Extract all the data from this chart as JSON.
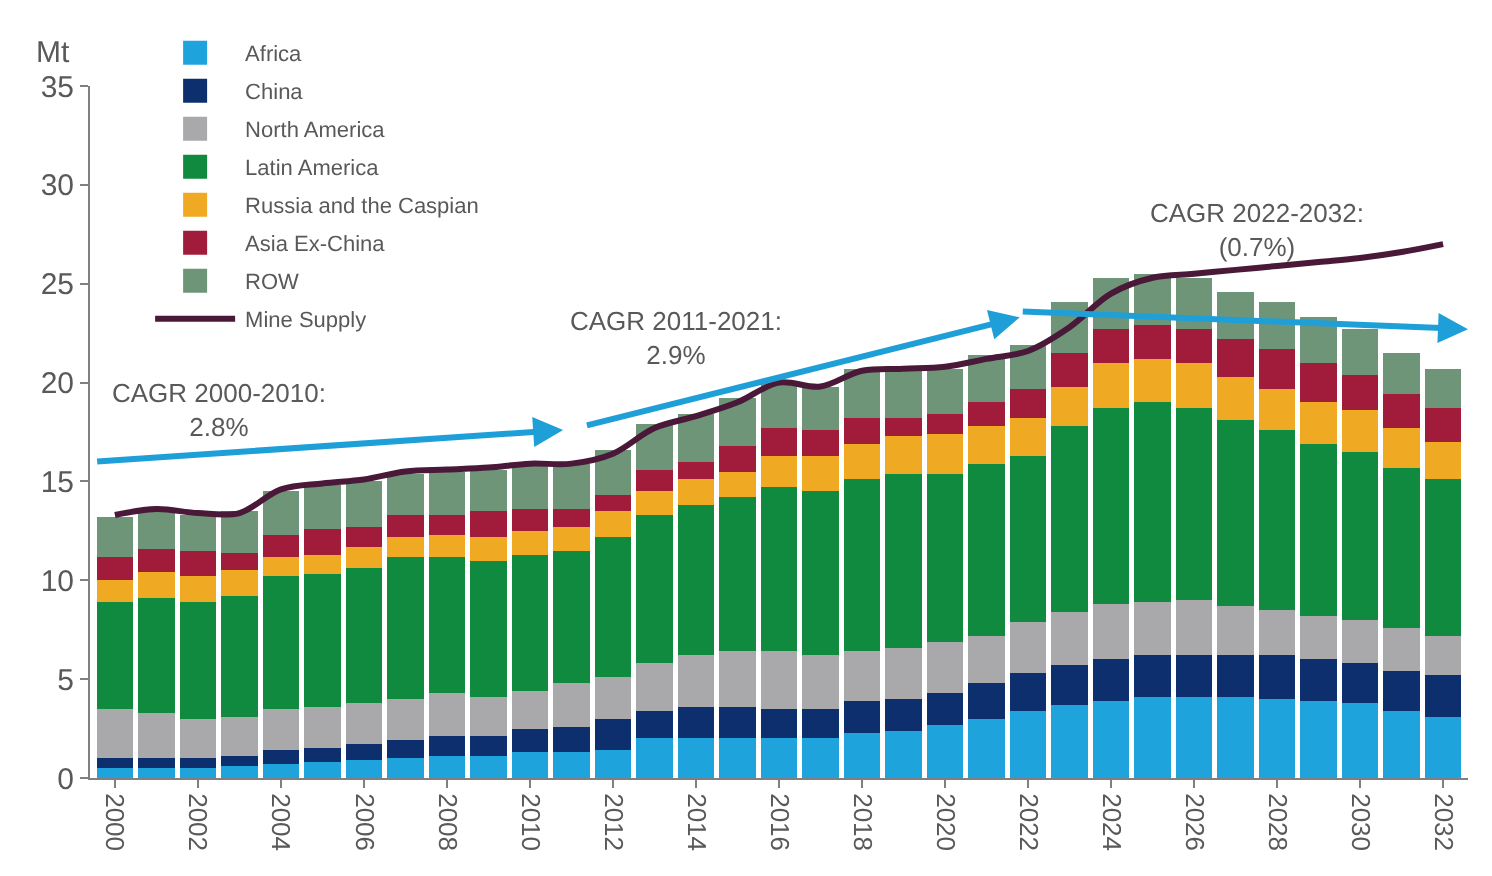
{
  "chart_data": {
    "type": "bar",
    "stacked": true,
    "ylabel": "Mt",
    "categories": [
      "2000",
      null,
      "2002",
      null,
      "2004",
      null,
      "2006",
      null,
      "2008",
      null,
      "2010",
      null,
      "2012",
      null,
      "2014",
      null,
      "2016",
      null,
      "2018",
      null,
      "2020",
      null,
      "2022",
      null,
      "2024",
      null,
      "2026",
      null,
      "2028",
      null,
      "2030",
      null,
      "2032"
    ],
    "ylim": [
      0,
      35
    ],
    "yticks": [
      0,
      5,
      10,
      15,
      20,
      25,
      30,
      35
    ],
    "legend": "top left",
    "series": [
      {
        "name": "Africa",
        "color": "#1fa3dc",
        "values": [
          0.5,
          0.5,
          0.5,
          0.6,
          0.7,
          0.8,
          0.9,
          1.0,
          1.1,
          1.1,
          1.3,
          1.3,
          1.4,
          2.0,
          2.0,
          2.0,
          2.0,
          2.0,
          2.3,
          2.4,
          2.7,
          3.0,
          3.4,
          3.7,
          3.9,
          4.1,
          4.1,
          4.1,
          4.0,
          3.9,
          3.8,
          3.4,
          3.1
        ]
      },
      {
        "name": "China",
        "color": "#0d2f6e",
        "values": [
          0.5,
          0.5,
          0.5,
          0.5,
          0.7,
          0.7,
          0.8,
          0.9,
          1.0,
          1.0,
          1.2,
          1.3,
          1.6,
          1.4,
          1.6,
          1.6,
          1.5,
          1.5,
          1.6,
          1.6,
          1.6,
          1.8,
          1.9,
          2.0,
          2.1,
          2.1,
          2.1,
          2.1,
          2.2,
          2.1,
          2.0,
          2.0,
          2.1
        ]
      },
      {
        "name": "North America",
        "color": "#a9a9ab",
        "values": [
          2.5,
          2.3,
          2.0,
          2.0,
          2.1,
          2.1,
          2.1,
          2.1,
          2.2,
          2.0,
          1.9,
          2.2,
          2.1,
          2.4,
          2.6,
          2.8,
          2.9,
          2.7,
          2.5,
          2.6,
          2.6,
          2.4,
          2.6,
          2.7,
          2.8,
          2.7,
          2.8,
          2.5,
          2.3,
          2.2,
          2.2,
          2.2,
          2.0
        ]
      },
      {
        "name": "Latin America",
        "color": "#108a3e",
        "values": [
          5.4,
          5.8,
          5.9,
          6.1,
          6.7,
          6.7,
          6.8,
          7.2,
          6.9,
          6.9,
          6.9,
          6.7,
          7.1,
          7.5,
          7.6,
          7.8,
          8.3,
          8.3,
          8.7,
          8.8,
          8.5,
          8.7,
          8.4,
          9.4,
          9.9,
          10.1,
          9.7,
          9.4,
          9.1,
          8.7,
          8.5,
          8.1,
          7.9
        ]
      },
      {
        "name": "Russia and the Caspian",
        "color": "#f0a922",
        "values": [
          1.1,
          1.3,
          1.3,
          1.3,
          1.0,
          1.0,
          1.1,
          1.0,
          1.1,
          1.2,
          1.2,
          1.2,
          1.3,
          1.2,
          1.3,
          1.3,
          1.6,
          1.8,
          1.8,
          1.9,
          2.0,
          1.9,
          1.9,
          2.0,
          2.3,
          2.2,
          2.3,
          2.2,
          2.1,
          2.1,
          2.1,
          2.0,
          1.9
        ]
      },
      {
        "name": "Asia Ex-China",
        "color": "#a01c3a",
        "values": [
          1.2,
          1.2,
          1.3,
          0.9,
          1.1,
          1.3,
          1.0,
          1.1,
          1.0,
          1.3,
          1.1,
          0.9,
          0.8,
          1.1,
          0.9,
          1.3,
          1.4,
          1.3,
          1.3,
          0.9,
          1.0,
          1.2,
          1.5,
          1.7,
          1.7,
          1.7,
          1.7,
          1.9,
          2.0,
          2.0,
          1.8,
          1.7,
          1.7
        ]
      },
      {
        "name": "ROW",
        "color": "#6f9579",
        "values": [
          2.0,
          1.9,
          1.8,
          2.1,
          2.2,
          2.2,
          2.3,
          2.1,
          2.2,
          2.1,
          2.2,
          2.3,
          2.3,
          2.3,
          2.4,
          2.4,
          2.3,
          2.2,
          2.5,
          2.5,
          2.3,
          2.4,
          2.2,
          2.6,
          2.6,
          2.6,
          2.6,
          2.4,
          2.4,
          2.3,
          2.3,
          2.1,
          2.0
        ]
      },
      {
        "name": "Mine Supply",
        "type": "line",
        "color": "#4a1838",
        "marker": "none",
        "line_style": "solid",
        "values": [
          13.3,
          13.6,
          13.4,
          13.4,
          14.6,
          14.9,
          15.1,
          15.5,
          15.6,
          15.7,
          15.9,
          15.9,
          16.4,
          17.7,
          18.3,
          19.0,
          20.0,
          19.8,
          20.6,
          20.7,
          20.8,
          21.2,
          21.6,
          22.8,
          24.5,
          25.3,
          25.5,
          25.7,
          25.9,
          26.1,
          26.3,
          26.6,
          27.0
        ]
      }
    ],
    "annotations": [
      "CAGR 2000-2010:\n2.8%",
      "CAGR 2011-2021:\n2.9%",
      "CAGR 2022-2032:\n(0.7%)"
    ]
  }
}
